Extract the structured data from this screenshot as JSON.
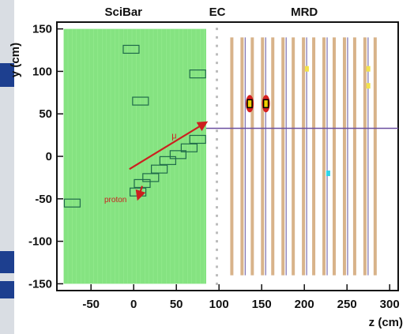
{
  "chart_data": {
    "type": "scatter",
    "title": "",
    "xlabel": "z (cm)",
    "ylabel": "y (cm)",
    "xlim": [
      -90,
      310
    ],
    "ylim": [
      -158,
      158
    ],
    "x_ticks": [
      -50,
      0,
      50,
      100,
      150,
      200,
      250,
      300
    ],
    "y_ticks": [
      150,
      100,
      50,
      0,
      -50,
      -100,
      -150
    ],
    "grid": false,
    "regions": [
      {
        "name": "SciBar",
        "x_range": [
          -82,
          85
        ],
        "y_range": [
          -150,
          150
        ],
        "color": "#7ee27a"
      },
      {
        "name": "EC",
        "x_range": [
          95,
          100
        ],
        "y_range": [
          -150,
          150
        ],
        "color": "#bdbdbd"
      },
      {
        "name": "MRD",
        "x_range": [
          110,
          285
        ],
        "y_range": [
          -140,
          140
        ],
        "color": "#d8b38a"
      }
    ],
    "region_labels": [
      "SciBar",
      "EC",
      "MRD"
    ],
    "beam_line_y": 33,
    "scibar_hit_boxes": [
      {
        "z": -72,
        "y": -55
      },
      {
        "z": -3,
        "y": 126
      },
      {
        "z": 8,
        "y": 65
      },
      {
        "z": 75,
        "y": 97
      },
      {
        "z": 5,
        "y": -42
      },
      {
        "z": 10,
        "y": -32
      },
      {
        "z": 20,
        "y": -25
      },
      {
        "z": 30,
        "y": -15
      },
      {
        "z": 40,
        "y": -5
      },
      {
        "z": 52,
        "y": 2
      },
      {
        "z": 65,
        "y": 10
      },
      {
        "z": 75,
        "y": 20
      }
    ],
    "tracks": [
      {
        "name": "μ",
        "from": [
          -5,
          -15
        ],
        "to": [
          85,
          40
        ]
      },
      {
        "name": "proton",
        "from": [
          10,
          -35
        ],
        "to": [
          5,
          -50
        ]
      }
    ],
    "mrd_hits": [
      {
        "z": 136,
        "y": 62,
        "color": "#f2d000",
        "outline": "#000000",
        "marker": "ellipse-red"
      },
      {
        "z": 155,
        "y": 62,
        "color": "#f2d000",
        "outline": "#000000",
        "marker": "ellipse-red"
      },
      {
        "z": 203,
        "y": 103,
        "color": "#f2e24a",
        "marker": "dot"
      },
      {
        "z": 275,
        "y": 103,
        "color": "#f2e24a",
        "marker": "dot"
      },
      {
        "z": 275,
        "y": 83,
        "color": "#f2e24a",
        "marker": "dot"
      },
      {
        "z": 228,
        "y": -20,
        "color": "#2fd6e8",
        "marker": "dot"
      }
    ],
    "mrd_planes_z": [
      115,
      127,
      139,
      151,
      163,
      175,
      187,
      199,
      211,
      223,
      235,
      247,
      259,
      271,
      283
    ],
    "colors": {
      "plot_bg": "#ffffff",
      "muon": "#cc1f1f",
      "proton": "#cc1f1f",
      "beam": "#6a4fa0"
    }
  }
}
